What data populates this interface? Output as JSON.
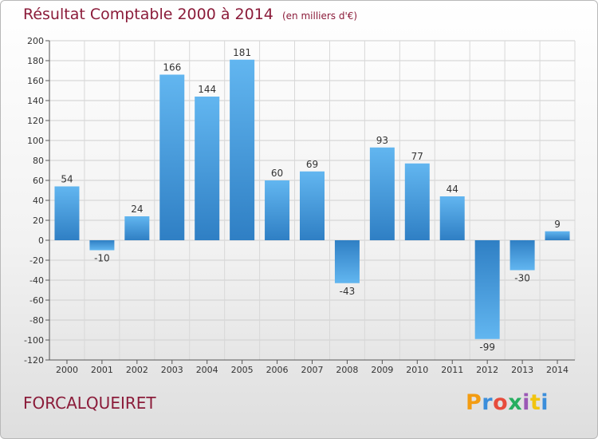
{
  "chart_data": {
    "type": "bar",
    "title": "Résultat Comptable 2000 à 2014",
    "subtitle": "(en milliers d'€)",
    "categories": [
      "2000",
      "2001",
      "2002",
      "2003",
      "2004",
      "2005",
      "2006",
      "2007",
      "2008",
      "2009",
      "2010",
      "2011",
      "2012",
      "2013",
      "2014"
    ],
    "values": [
      54,
      -10,
      24,
      166,
      144,
      181,
      60,
      69,
      -43,
      93,
      77,
      44,
      -99,
      -30,
      9
    ],
    "ylim": [
      -120,
      200
    ],
    "yticks": [
      200,
      180,
      160,
      140,
      120,
      100,
      80,
      60,
      40,
      20,
      0,
      -20,
      -40,
      -60,
      -80,
      -100,
      -120
    ],
    "grid": true,
    "bar_color": "#3a8fd6",
    "bar_color_light": "#5fb4ef"
  },
  "footer": {
    "place": "FORCALQUEIRET",
    "logo": "Proxiti",
    "logo_colors": [
      "#f39c12",
      "#3b8edb",
      "#e74c3c",
      "#27ae60",
      "#9b59b6",
      "#f1c40f",
      "#3b8edb"
    ]
  }
}
